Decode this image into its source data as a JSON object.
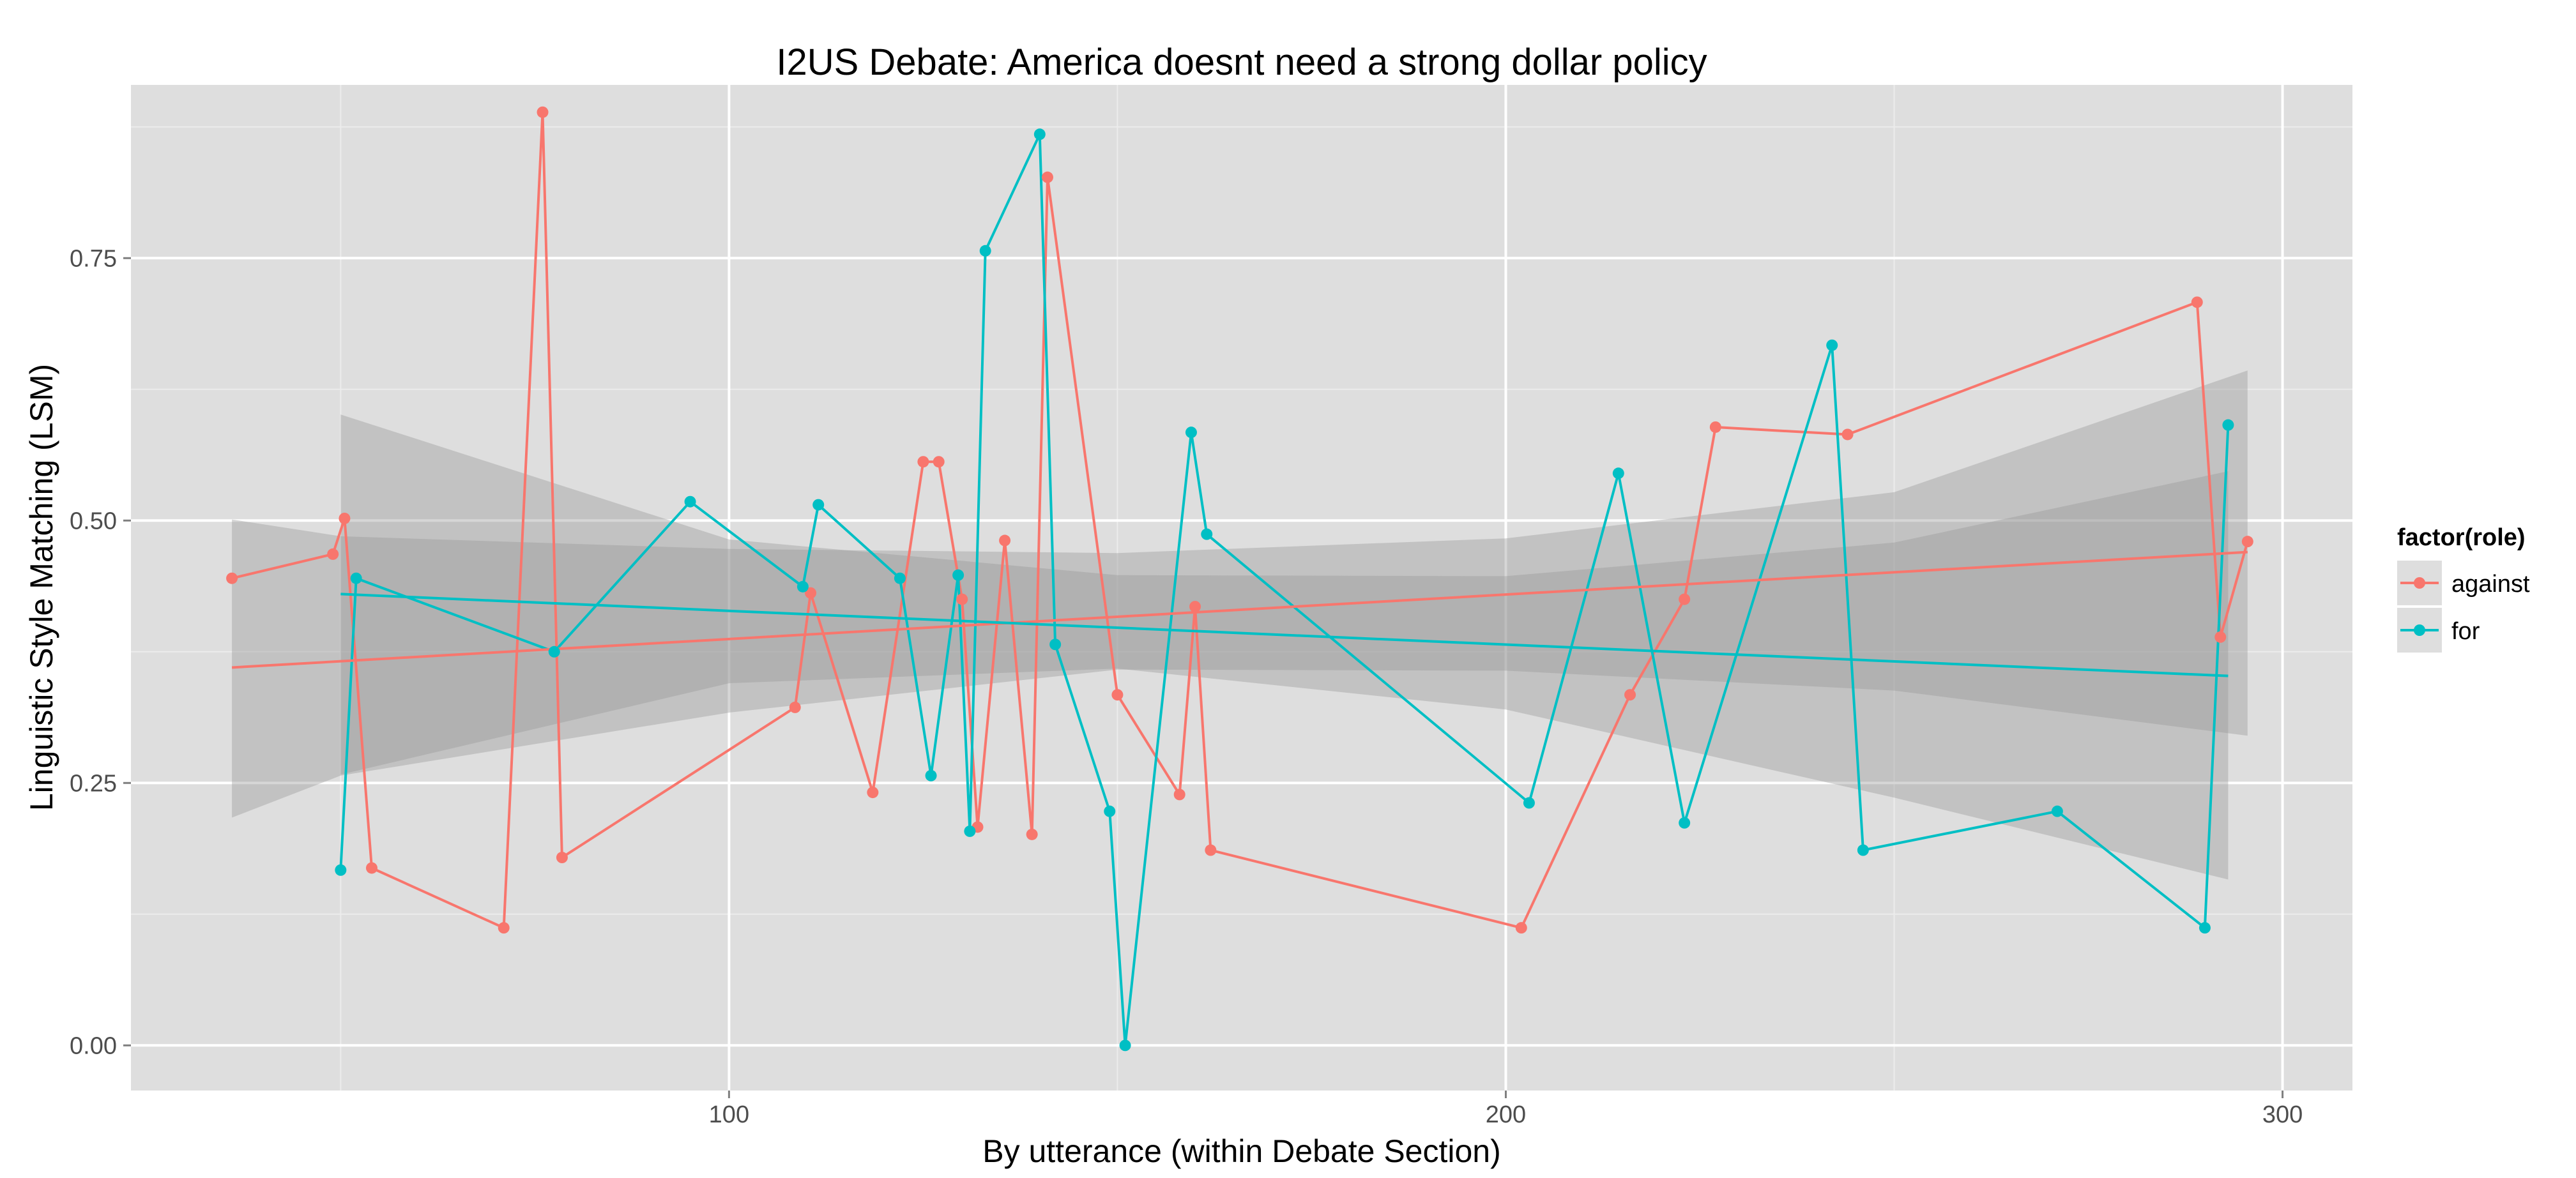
{
  "chart_data": {
    "type": "line",
    "title": "I2US Debate: America doesnt need a strong dollar policy",
    "xlabel": "By utterance (within Debate Section)",
    "ylabel": "Linguistic Style Matching (LSM)",
    "xlim": [
      23,
      309
    ],
    "ylim": [
      -0.043,
      0.915
    ],
    "xticks": [
      100,
      200,
      300
    ],
    "xtick_labels": [
      "100",
      "200",
      "300"
    ],
    "yticks": [
      0,
      0.25,
      0.5,
      0.75
    ],
    "ytick_labels": [
      "0.00",
      "0.25",
      "0.50",
      "0.75"
    ],
    "grid": true,
    "legend": {
      "title": "factor(role)",
      "position": "right",
      "items": [
        "against",
        "for"
      ]
    },
    "colors": {
      "against": "#F8766D",
      "for": "#00BFC4",
      "panel": "#DEDEDE",
      "ribbon": "#999999"
    },
    "series": [
      {
        "name": "against",
        "points": [
          [
            36,
            0.445
          ],
          [
            49,
            0.468
          ],
          [
            50.5,
            0.502
          ],
          [
            54,
            0.169
          ],
          [
            71,
            0.112
          ],
          [
            76,
            0.889
          ],
          [
            78.5,
            0.179
          ],
          [
            108.5,
            0.322
          ],
          [
            110.5,
            0.431
          ],
          [
            118.5,
            0.241
          ],
          [
            125,
            0.556
          ],
          [
            127,
            0.556
          ],
          [
            130,
            0.425
          ],
          [
            132,
            0.208
          ],
          [
            135.5,
            0.481
          ],
          [
            139,
            0.201
          ],
          [
            141,
            0.827
          ],
          [
            150,
            0.334
          ],
          [
            158,
            0.239
          ],
          [
            160,
            0.418
          ],
          [
            162,
            0.186
          ],
          [
            202,
            0.112
          ],
          [
            216,
            0.334
          ],
          [
            223,
            0.425
          ],
          [
            227,
            0.589
          ],
          [
            244,
            0.582
          ],
          [
            289,
            0.708
          ],
          [
            292,
            0.389
          ],
          [
            295.5,
            0.48
          ]
        ],
        "trend": {
          "x": [
            36,
            295.5
          ],
          "y": [
            0.36,
            0.47
          ]
        },
        "band": {
          "x": [
            36,
            50,
            100,
            150,
            200,
            250,
            295.5
          ],
          "lower": [
            0.217,
            0.257,
            0.317,
            0.358,
            0.357,
            0.338,
            0.295
          ],
          "upper": [
            0.501,
            0.485,
            0.473,
            0.469,
            0.483,
            0.527,
            0.643
          ]
        }
      },
      {
        "name": "for",
        "points": [
          [
            50,
            0.167
          ],
          [
            52,
            0.445
          ],
          [
            77.5,
            0.375
          ],
          [
            95,
            0.518
          ],
          [
            109.5,
            0.437
          ],
          [
            111.5,
            0.515
          ],
          [
            122,
            0.445
          ],
          [
            126,
            0.257
          ],
          [
            129.5,
            0.448
          ],
          [
            131,
            0.204
          ],
          [
            133,
            0.757
          ],
          [
            140,
            0.868
          ],
          [
            142,
            0.382
          ],
          [
            149,
            0.223
          ],
          [
            151,
            0.0
          ],
          [
            159.5,
            0.584
          ],
          [
            161.5,
            0.487
          ],
          [
            203,
            0.231
          ],
          [
            214.5,
            0.545
          ],
          [
            223,
            0.212
          ],
          [
            242,
            0.667
          ],
          [
            246,
            0.186
          ],
          [
            271,
            0.223
          ],
          [
            290,
            0.112
          ],
          [
            293,
            0.591
          ]
        ],
        "trend": {
          "x": [
            50,
            293
          ],
          "y": [
            0.43,
            0.352
          ]
        },
        "band": {
          "x": [
            50,
            100,
            150,
            200,
            250,
            293
          ],
          "lower": [
            0.258,
            0.345,
            0.359,
            0.32,
            0.236,
            0.158
          ],
          "upper": [
            0.601,
            0.482,
            0.448,
            0.447,
            0.479,
            0.547
          ]
        }
      }
    ]
  }
}
